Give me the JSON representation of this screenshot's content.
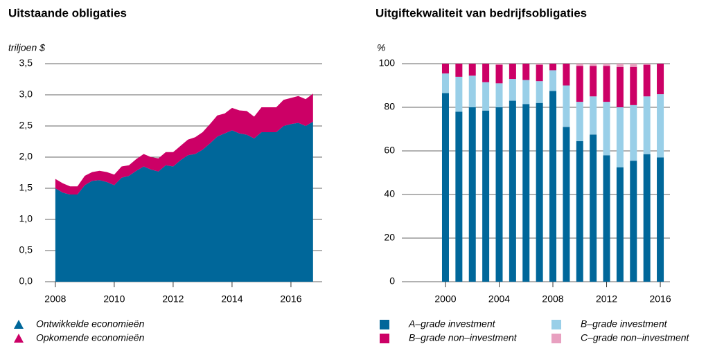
{
  "chart_data": [
    {
      "type": "area",
      "title": "Uitstaande obligaties",
      "y_label": "triljoen $",
      "x": [
        2008,
        2008.25,
        2008.5,
        2008.75,
        2009,
        2009.25,
        2009.5,
        2009.75,
        2010,
        2010.25,
        2010.5,
        2010.75,
        2011,
        2011.25,
        2011.5,
        2011.75,
        2012,
        2012.25,
        2012.5,
        2012.75,
        2013,
        2013.25,
        2013.5,
        2013.75,
        2014,
        2014.25,
        2014.5,
        2014.75,
        2015,
        2015.25,
        2015.5,
        2015.75,
        2016,
        2016.25,
        2016.5,
        2016.75
      ],
      "series": [
        {
          "name": "Ontwikkelde economieën",
          "color": "#00679a",
          "values": [
            1.5,
            1.43,
            1.4,
            1.4,
            1.55,
            1.62,
            1.63,
            1.6,
            1.55,
            1.67,
            1.7,
            1.78,
            1.85,
            1.8,
            1.77,
            1.87,
            1.85,
            1.95,
            2.03,
            2.05,
            2.12,
            2.22,
            2.33,
            2.38,
            2.43,
            2.38,
            2.36,
            2.3,
            2.4,
            2.4,
            2.4,
            2.5,
            2.53,
            2.55,
            2.5,
            2.57
          ]
        },
        {
          "name": "Opkomende economieën",
          "color": "#cc0066",
          "values": [
            0.15,
            0.15,
            0.13,
            0.13,
            0.15,
            0.14,
            0.15,
            0.16,
            0.17,
            0.18,
            0.17,
            0.19,
            0.2,
            0.2,
            0.21,
            0.21,
            0.23,
            0.23,
            0.25,
            0.27,
            0.28,
            0.31,
            0.34,
            0.32,
            0.36,
            0.37,
            0.38,
            0.35,
            0.4,
            0.4,
            0.4,
            0.42,
            0.42,
            0.43,
            0.43,
            0.45
          ]
        }
      ],
      "xlim": [
        2007.65,
        2017.06
      ],
      "xticks": [
        2008,
        2010,
        2012,
        2014,
        2016
      ],
      "ylim": [
        0,
        3.5
      ],
      "yticks": [
        {
          "value": 0,
          "label": "0,0"
        },
        {
          "value": 0.5,
          "label": "0,5"
        },
        {
          "value": 1,
          "label": "1,0"
        },
        {
          "value": 1.5,
          "label": "1,5"
        },
        {
          "value": 2,
          "label": "2,0"
        },
        {
          "value": 2.5,
          "label": "2,5"
        },
        {
          "value": 3,
          "label": "3,0"
        },
        {
          "value": 3.5,
          "label": "3,5"
        }
      ],
      "grid": true,
      "stacked": true
    },
    {
      "type": "bar",
      "title": "Uitgiftekwaliteit van bedrijfsobligaties",
      "y_label": "%",
      "x": [
        2000,
        2001,
        2002,
        2003,
        2004,
        2005,
        2006,
        2007,
        2008,
        2009,
        2010,
        2011,
        2012,
        2013,
        2014,
        2015,
        2016
      ],
      "series": [
        {
          "name": "A–grade investment",
          "color": "#00679a",
          "values": [
            86.5,
            78,
            80,
            78.5,
            80,
            83,
            81.5,
            82,
            87.5,
            71,
            64.5,
            67.5,
            58,
            52.5,
            55.5,
            58.5,
            57
          ]
        },
        {
          "name": "B–grade investment",
          "color": "#99cfe8",
          "values": [
            9,
            16,
            14.5,
            13,
            11,
            10,
            11,
            10,
            9.5,
            19,
            18,
            17.5,
            24.5,
            27.5,
            25.5,
            26.5,
            29
          ]
        },
        {
          "name": "B–grade non–investment",
          "color": "#cc0066",
          "values": [
            4.5,
            6,
            5.5,
            8.5,
            8.5,
            7,
            7.5,
            7.5,
            3,
            10,
            16.5,
            14,
            16.5,
            18.5,
            17.5,
            14.5,
            14
          ]
        },
        {
          "name": "C–grade non–investment",
          "color": "#e8a0c0",
          "values": [
            0,
            0,
            0,
            0,
            0.5,
            0,
            0,
            0.5,
            0,
            0,
            1,
            1,
            1,
            1.5,
            1.5,
            0.5,
            0
          ]
        }
      ],
      "xlim": [
        1996.75,
        2016.72
      ],
      "xticks": [
        2000,
        2004,
        2008,
        2012,
        2016
      ],
      "ylim": [
        0,
        100
      ],
      "yticks": [
        0,
        20,
        40,
        60,
        80,
        100
      ],
      "grid": true,
      "stacked": true
    }
  ]
}
